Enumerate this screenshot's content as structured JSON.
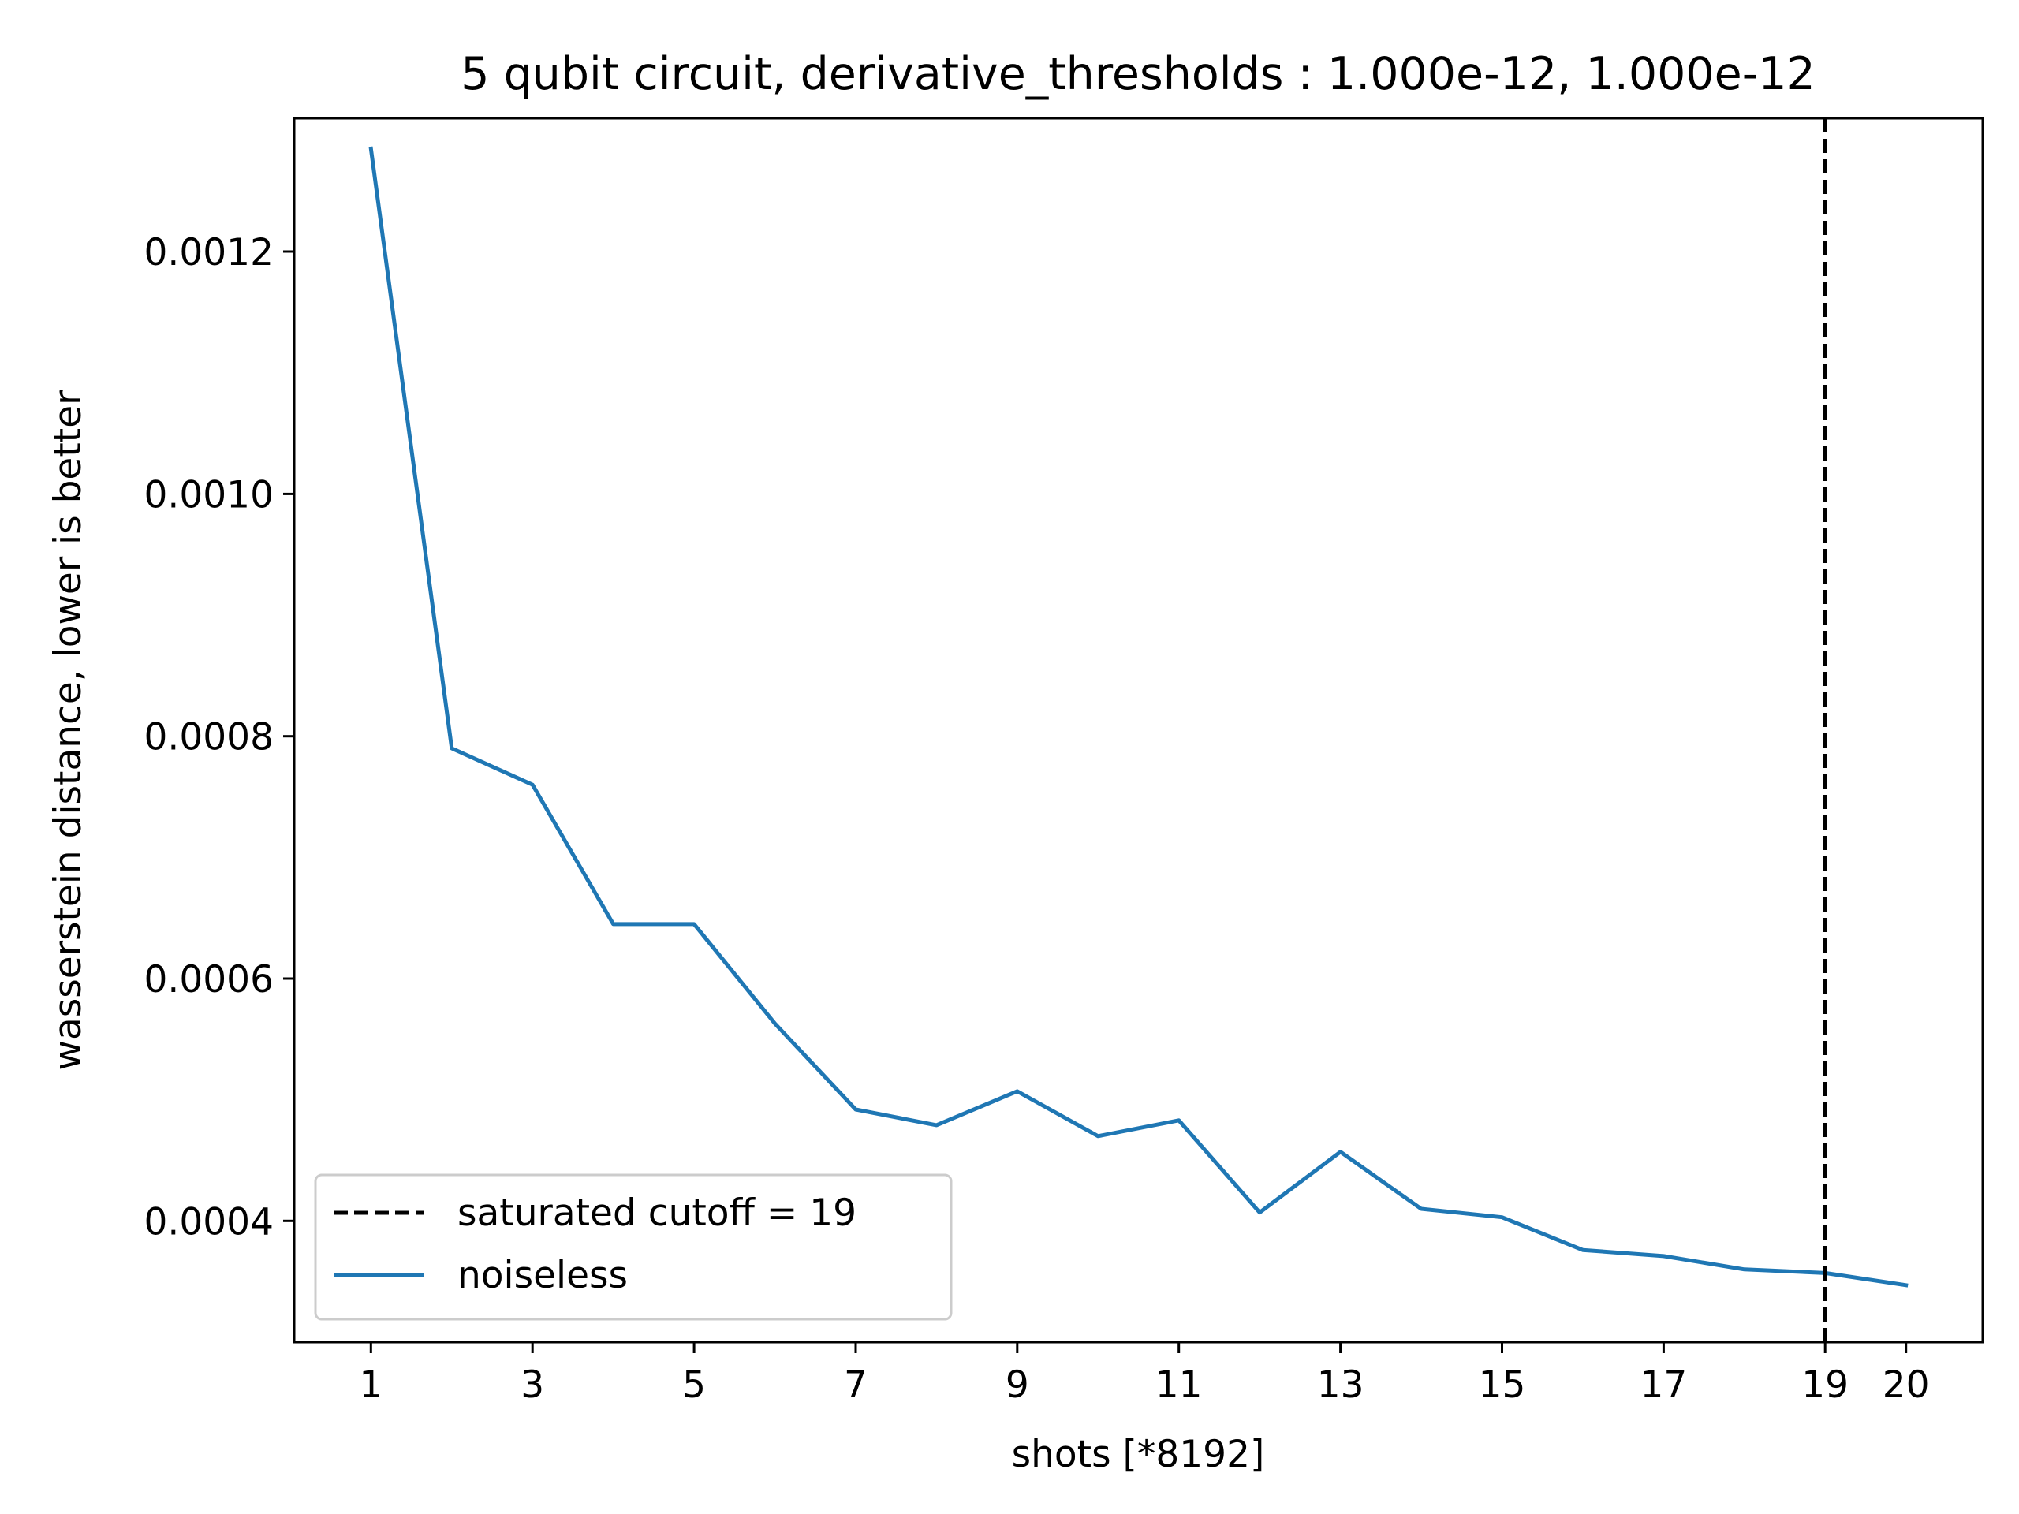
{
  "chart_data": {
    "type": "line",
    "title": "5 qubit circuit, derivative_thresholds : 1.000e-12, 1.000e-12",
    "xlabel": "shots [*8192]",
    "ylabel": "wasserstein distance, lower is better",
    "xlim": [
      0.05,
      20.95
    ],
    "ylim": [
      0.0003,
      0.00131
    ],
    "x_ticks": [
      1,
      3,
      5,
      7,
      9,
      11,
      13,
      15,
      17,
      19,
      20
    ],
    "x_tick_labels": [
      "1",
      "3",
      "5",
      "7",
      "9",
      "11",
      "13",
      "15",
      "17",
      "19",
      "20"
    ],
    "y_ticks": [
      0.0004,
      0.0006,
      0.0008,
      0.001,
      0.0012
    ],
    "y_tick_labels": [
      "0.0004",
      "0.0006",
      "0.0008",
      "0.0010",
      "0.0012"
    ],
    "grid": false,
    "legend_position": "lower-left",
    "series": [
      {
        "name": "noiseless",
        "color": "#1f77b4",
        "style": "solid",
        "x": [
          1,
          2,
          3,
          4,
          5,
          6,
          7,
          8,
          9,
          10,
          11,
          12,
          13,
          14,
          15,
          16,
          17,
          18,
          19,
          20
        ],
        "y": [
          0.001285,
          0.00079,
          0.00076,
          0.000645,
          0.000645,
          0.000563,
          0.000492,
          0.000479,
          0.000507,
          0.00047,
          0.000483,
          0.000407,
          0.000457,
          0.00041,
          0.000403,
          0.000376,
          0.000371,
          0.00036,
          0.000357,
          0.000347
        ]
      }
    ],
    "vlines": [
      {
        "name": "saturated cutoff = 19",
        "x": 19,
        "color": "#000000",
        "style": "dashed"
      }
    ]
  }
}
